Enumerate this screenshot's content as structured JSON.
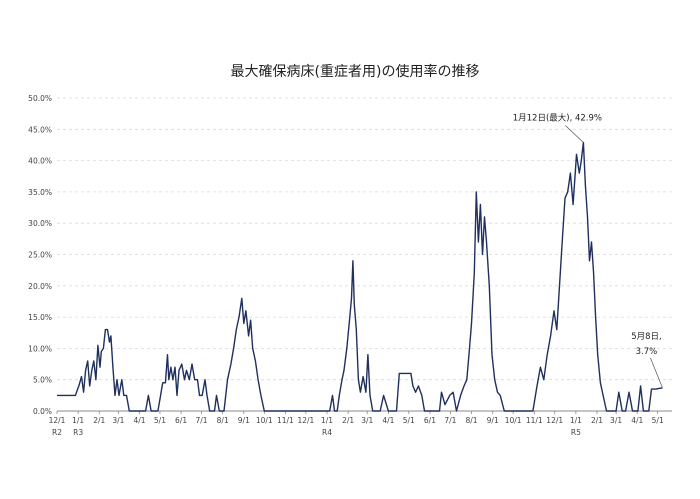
{
  "chart_data": {
    "type": "line",
    "title": "最大確保病床(重症者用)の使用率の推移",
    "xlabel": "",
    "ylabel": "",
    "ylim": [
      0,
      50
    ],
    "yticks": [
      0,
      5,
      10,
      15,
      20,
      25,
      30,
      35,
      40,
      45,
      50
    ],
    "ytick_labels": [
      "0.0%",
      "5.0%",
      "10.0%",
      "15.0%",
      "20.0%",
      "25.0%",
      "30.0%",
      "35.0%",
      "40.0%",
      "45.0%",
      "50.0%"
    ],
    "grid": true,
    "x_ticks": [
      {
        "label": "12/1",
        "era": "R2",
        "date": "2020-12-01"
      },
      {
        "label": "1/1",
        "era": "R3",
        "date": "2021-01-01"
      },
      {
        "label": "2/1",
        "era": "",
        "date": "2021-02-01"
      },
      {
        "label": "3/1",
        "era": "",
        "date": "2021-03-01"
      },
      {
        "label": "4/1",
        "era": "",
        "date": "2021-04-01"
      },
      {
        "label": "5/1",
        "era": "",
        "date": "2021-05-01"
      },
      {
        "label": "6/1",
        "era": "",
        "date": "2021-06-01"
      },
      {
        "label": "7/1",
        "era": "",
        "date": "2021-07-01"
      },
      {
        "label": "8/1",
        "era": "",
        "date": "2021-08-01"
      },
      {
        "label": "9/1",
        "era": "",
        "date": "2021-09-01"
      },
      {
        "label": "10/1",
        "era": "",
        "date": "2021-10-01"
      },
      {
        "label": "11/1",
        "era": "",
        "date": "2021-11-01"
      },
      {
        "label": "12/1",
        "era": "",
        "date": "2021-12-01"
      },
      {
        "label": "1/1",
        "era": "R4",
        "date": "2022-01-01"
      },
      {
        "label": "2/1",
        "era": "",
        "date": "2022-02-01"
      },
      {
        "label": "3/1",
        "era": "",
        "date": "2022-03-01"
      },
      {
        "label": "4/1",
        "era": "",
        "date": "2022-04-01"
      },
      {
        "label": "5/1",
        "era": "",
        "date": "2022-05-01"
      },
      {
        "label": "6/1",
        "era": "",
        "date": "2022-06-01"
      },
      {
        "label": "7/1",
        "era": "",
        "date": "2022-07-01"
      },
      {
        "label": "8/1",
        "era": "",
        "date": "2022-08-01"
      },
      {
        "label": "9/1",
        "era": "",
        "date": "2022-09-01"
      },
      {
        "label": "10/1",
        "era": "",
        "date": "2022-10-01"
      },
      {
        "label": "11/1",
        "era": "",
        "date": "2022-11-01"
      },
      {
        "label": "12/1",
        "era": "",
        "date": "2022-12-01"
      },
      {
        "label": "1/1",
        "era": "R5",
        "date": "2023-01-01"
      },
      {
        "label": "2/1",
        "era": "",
        "date": "2023-02-01"
      },
      {
        "label": "3/1",
        "era": "",
        "date": "2023-03-01"
      },
      {
        "label": "4/1",
        "era": "",
        "date": "2023-04-01"
      },
      {
        "label": "5/1",
        "era": "",
        "date": "2023-05-01"
      }
    ],
    "series": [
      {
        "name": "",
        "color": "#1f2f5f",
        "points": [
          [
            "2020-12-01",
            2.5
          ],
          [
            "2020-12-28",
            2.5
          ],
          [
            "2021-01-02",
            4.0
          ],
          [
            "2021-01-06",
            5.5
          ],
          [
            "2021-01-09",
            3.0
          ],
          [
            "2021-01-12",
            6.5
          ],
          [
            "2021-01-15",
            8.0
          ],
          [
            "2021-01-18",
            4.0
          ],
          [
            "2021-01-21",
            6.5
          ],
          [
            "2021-01-24",
            8.0
          ],
          [
            "2021-01-27",
            5.0
          ],
          [
            "2021-01-30",
            10.5
          ],
          [
            "2021-02-02",
            7.0
          ],
          [
            "2021-02-04",
            9.5
          ],
          [
            "2021-02-07",
            10.0
          ],
          [
            "2021-02-10",
            13.0
          ],
          [
            "2021-02-13",
            13.0
          ],
          [
            "2021-02-16",
            11.0
          ],
          [
            "2021-02-18",
            12.0
          ],
          [
            "2021-02-21",
            7.0
          ],
          [
            "2021-02-24",
            2.5
          ],
          [
            "2021-02-27",
            5.0
          ],
          [
            "2021-03-02",
            2.5
          ],
          [
            "2021-03-06",
            5.0
          ],
          [
            "2021-03-09",
            2.5
          ],
          [
            "2021-03-13",
            2.5
          ],
          [
            "2021-03-17",
            0.0
          ],
          [
            "2021-04-10",
            0.0
          ],
          [
            "2021-04-14",
            2.5
          ],
          [
            "2021-04-18",
            0.0
          ],
          [
            "2021-04-28",
            0.0
          ],
          [
            "2021-05-02",
            2.5
          ],
          [
            "2021-05-05",
            4.5
          ],
          [
            "2021-05-09",
            4.5
          ],
          [
            "2021-05-12",
            9.0
          ],
          [
            "2021-05-14",
            5.0
          ],
          [
            "2021-05-17",
            7.0
          ],
          [
            "2021-05-20",
            5.0
          ],
          [
            "2021-05-23",
            7.0
          ],
          [
            "2021-05-26",
            2.5
          ],
          [
            "2021-05-29",
            6.5
          ],
          [
            "2021-06-02",
            7.5
          ],
          [
            "2021-06-06",
            5.0
          ],
          [
            "2021-06-09",
            6.5
          ],
          [
            "2021-06-13",
            5.0
          ],
          [
            "2021-06-17",
            7.5
          ],
          [
            "2021-06-21",
            5.0
          ],
          [
            "2021-06-25",
            5.0
          ],
          [
            "2021-06-28",
            2.5
          ],
          [
            "2021-07-02",
            2.5
          ],
          [
            "2021-07-06",
            5.0
          ],
          [
            "2021-07-09",
            2.5
          ],
          [
            "2021-07-13",
            0.0
          ],
          [
            "2021-07-20",
            0.0
          ],
          [
            "2021-07-23",
            2.5
          ],
          [
            "2021-07-27",
            0.0
          ],
          [
            "2021-08-03",
            0.0
          ],
          [
            "2021-08-08",
            5.0
          ],
          [
            "2021-08-13",
            7.5
          ],
          [
            "2021-08-17",
            10.0
          ],
          [
            "2021-08-21",
            13.0
          ],
          [
            "2021-08-25",
            15.0
          ],
          [
            "2021-08-29",
            18.0
          ],
          [
            "2021-09-01",
            14.0
          ],
          [
            "2021-09-04",
            16.0
          ],
          [
            "2021-09-08",
            12.0
          ],
          [
            "2021-09-11",
            14.5
          ],
          [
            "2021-09-14",
            10.0
          ],
          [
            "2021-09-18",
            8.0
          ],
          [
            "2021-09-22",
            5.0
          ],
          [
            "2021-09-26",
            2.5
          ],
          [
            "2021-10-01",
            0.0
          ],
          [
            "2022-01-05",
            0.0
          ],
          [
            "2022-01-09",
            2.5
          ],
          [
            "2022-01-12",
            0.0
          ],
          [
            "2022-01-16",
            0.0
          ],
          [
            "2022-01-19",
            2.5
          ],
          [
            "2022-01-23",
            5.0
          ],
          [
            "2022-01-26",
            6.5
          ],
          [
            "2022-01-30",
            10.0
          ],
          [
            "2022-02-03",
            14.5
          ],
          [
            "2022-02-06",
            18.0
          ],
          [
            "2022-02-08",
            24.0
          ],
          [
            "2022-02-10",
            17.0
          ],
          [
            "2022-02-13",
            13.0
          ],
          [
            "2022-02-16",
            5.0
          ],
          [
            "2022-02-19",
            3.0
          ],
          [
            "2022-02-23",
            5.5
          ],
          [
            "2022-02-27",
            3.0
          ],
          [
            "2022-03-02",
            9.0
          ],
          [
            "2022-03-05",
            2.5
          ],
          [
            "2022-03-09",
            0.0
          ],
          [
            "2022-03-20",
            0.0
          ],
          [
            "2022-03-25",
            2.5
          ],
          [
            "2022-04-01",
            0.0
          ],
          [
            "2022-04-13",
            0.0
          ],
          [
            "2022-04-17",
            6.0
          ],
          [
            "2022-05-04",
            6.0
          ],
          [
            "2022-05-07",
            4.0
          ],
          [
            "2022-05-11",
            3.0
          ],
          [
            "2022-05-15",
            4.0
          ],
          [
            "2022-05-20",
            2.5
          ],
          [
            "2022-05-24",
            0.0
          ],
          [
            "2022-06-15",
            0.0
          ],
          [
            "2022-06-18",
            3.0
          ],
          [
            "2022-06-23",
            1.0
          ],
          [
            "2022-06-30",
            2.5
          ],
          [
            "2022-07-05",
            3.0
          ],
          [
            "2022-07-10",
            0.0
          ],
          [
            "2022-07-16",
            2.5
          ],
          [
            "2022-07-21",
            4.0
          ],
          [
            "2022-07-25",
            5.0
          ],
          [
            "2022-07-29",
            10.0
          ],
          [
            "2022-08-01",
            14.0
          ],
          [
            "2022-08-05",
            22.0
          ],
          [
            "2022-08-08",
            35.0
          ],
          [
            "2022-08-11",
            27.0
          ],
          [
            "2022-08-14",
            33.0
          ],
          [
            "2022-08-17",
            25.0
          ],
          [
            "2022-08-20",
            31.0
          ],
          [
            "2022-08-23",
            27.0
          ],
          [
            "2022-08-27",
            20.0
          ],
          [
            "2022-08-31",
            9.0
          ],
          [
            "2022-09-04",
            5.0
          ],
          [
            "2022-09-08",
            3.0
          ],
          [
            "2022-09-12",
            2.5
          ],
          [
            "2022-09-18",
            0.0
          ],
          [
            "2022-10-30",
            0.0
          ],
          [
            "2022-11-05",
            4.0
          ],
          [
            "2022-11-10",
            7.0
          ],
          [
            "2022-11-15",
            5.0
          ],
          [
            "2022-11-20",
            9.0
          ],
          [
            "2022-11-25",
            12.0
          ],
          [
            "2022-11-30",
            16.0
          ],
          [
            "2022-12-04",
            13.0
          ],
          [
            "2022-12-08",
            20.0
          ],
          [
            "2022-12-12",
            27.0
          ],
          [
            "2022-12-16",
            34.0
          ],
          [
            "2022-12-20",
            35.0
          ],
          [
            "2022-12-24",
            38.0
          ],
          [
            "2022-12-28",
            33.0
          ],
          [
            "2023-01-02",
            41.0
          ],
          [
            "2023-01-06",
            38.0
          ],
          [
            "2023-01-09",
            40.0
          ],
          [
            "2023-01-12",
            42.9
          ],
          [
            "2023-01-15",
            36.0
          ],
          [
            "2023-01-18",
            31.0
          ],
          [
            "2023-01-21",
            24.0
          ],
          [
            "2023-01-24",
            27.0
          ],
          [
            "2023-01-27",
            22.0
          ],
          [
            "2023-01-30",
            15.0
          ],
          [
            "2023-02-02",
            9.0
          ],
          [
            "2023-02-06",
            4.5
          ],
          [
            "2023-02-10",
            2.5
          ],
          [
            "2023-02-15",
            0.0
          ],
          [
            "2023-03-01",
            0.0
          ],
          [
            "2023-03-05",
            3.0
          ],
          [
            "2023-03-10",
            0.0
          ],
          [
            "2023-03-15",
            0.0
          ],
          [
            "2023-03-20",
            3.0
          ],
          [
            "2023-03-25",
            0.0
          ],
          [
            "2023-04-02",
            0.0
          ],
          [
            "2023-04-06",
            4.0
          ],
          [
            "2023-04-10",
            0.0
          ],
          [
            "2023-04-18",
            0.0
          ],
          [
            "2023-04-22",
            3.5
          ],
          [
            "2023-04-28",
            3.5
          ],
          [
            "2023-05-08",
            3.7
          ]
        ]
      }
    ],
    "annotations": [
      {
        "text": "1月12日(最大), 42.9%",
        "date": "2023-01-12",
        "value": 42.9
      },
      {
        "text": "5月8日,\n3.7%",
        "date": "2023-05-08",
        "value": 3.7
      }
    ]
  }
}
